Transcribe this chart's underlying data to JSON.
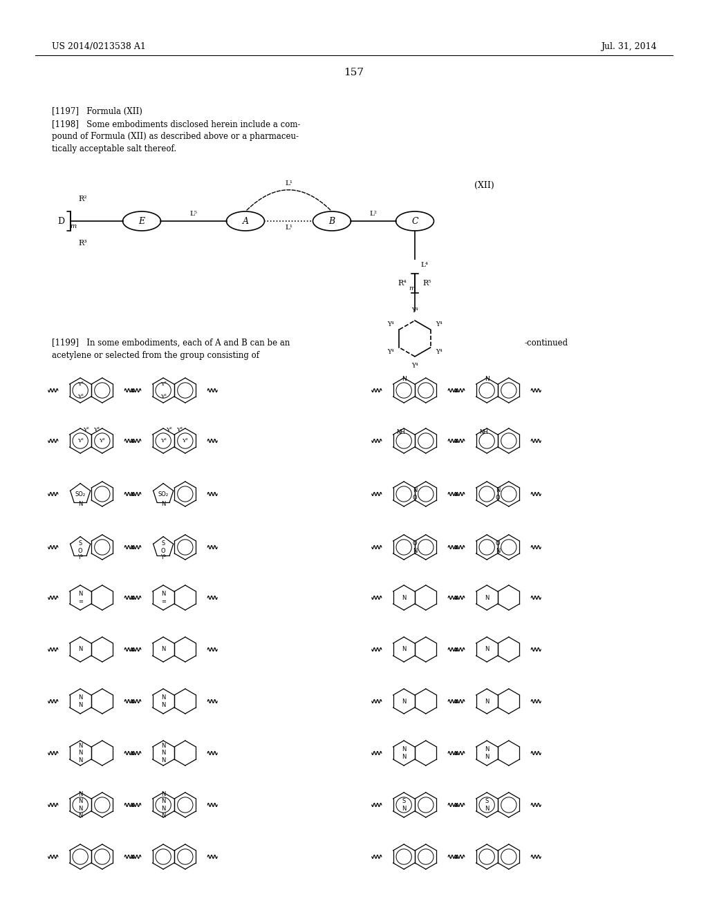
{
  "page_number": "157",
  "patent_number": "US 2014/0213538 A1",
  "patent_date": "Jul. 31, 2014",
  "header_text": "[1197]   Formula (XII)\n[1198]   Some embodiments disclosed herein include a com-\npound of Formula (XII) as described above or a pharmaceu-\ntically acceptable salt thereof.",
  "formula_label": "(XII)",
  "body_text": "[1199]   In some embodiments, each of A and B can be an\nacetylene or selected from the group consisting of",
  "continued_label": "-continued",
  "background_color": "#ffffff",
  "text_color": "#000000",
  "font_size_header": 9,
  "font_size_body": 9,
  "font_size_page": 11
}
